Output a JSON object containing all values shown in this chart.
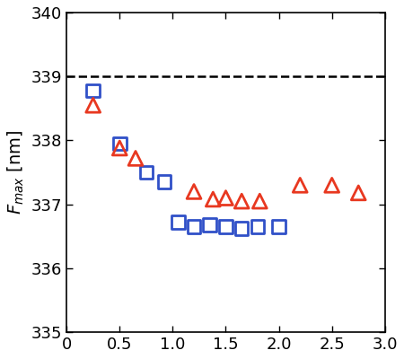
{
  "square_x": [
    0.25,
    0.5,
    0.75,
    0.92,
    1.05,
    1.2,
    1.35,
    1.5,
    1.65,
    1.8,
    2.0
  ],
  "square_y": [
    338.78,
    337.95,
    337.5,
    337.35,
    336.72,
    336.65,
    336.68,
    336.65,
    336.62,
    336.65,
    336.65
  ],
  "triangle_x": [
    0.25,
    0.5,
    0.65,
    1.2,
    1.38,
    1.5,
    1.65,
    1.82,
    2.2,
    2.5,
    2.75
  ],
  "triangle_y": [
    338.55,
    337.88,
    337.72,
    337.2,
    337.08,
    337.1,
    337.05,
    337.05,
    337.3,
    337.3,
    337.18
  ],
  "dashed_line_y": 339.0,
  "xlim": [
    0,
    3.0
  ],
  "ylim": [
    335,
    340
  ],
  "yticks": [
    335,
    336,
    337,
    338,
    339,
    340
  ],
  "xticks": [
    0,
    0.5,
    1.0,
    1.5,
    2.0,
    2.5,
    3.0
  ],
  "xtick_labels": [
    "0",
    "0.5",
    "1.0",
    "1.5",
    "2.0",
    "2.5",
    "3.0"
  ],
  "ytick_labels": [
    "335",
    "336",
    "337",
    "338",
    "339",
    "340"
  ],
  "ylabel": "$F_{max}$ [nm]",
  "square_color": "#3050c8",
  "triangle_color": "#e83820",
  "background_color": "#ffffff",
  "marker_size_sq": 110,
  "marker_size_tri": 130,
  "linewidth_marker": 2.0,
  "linewidth_dashed": 1.8
}
